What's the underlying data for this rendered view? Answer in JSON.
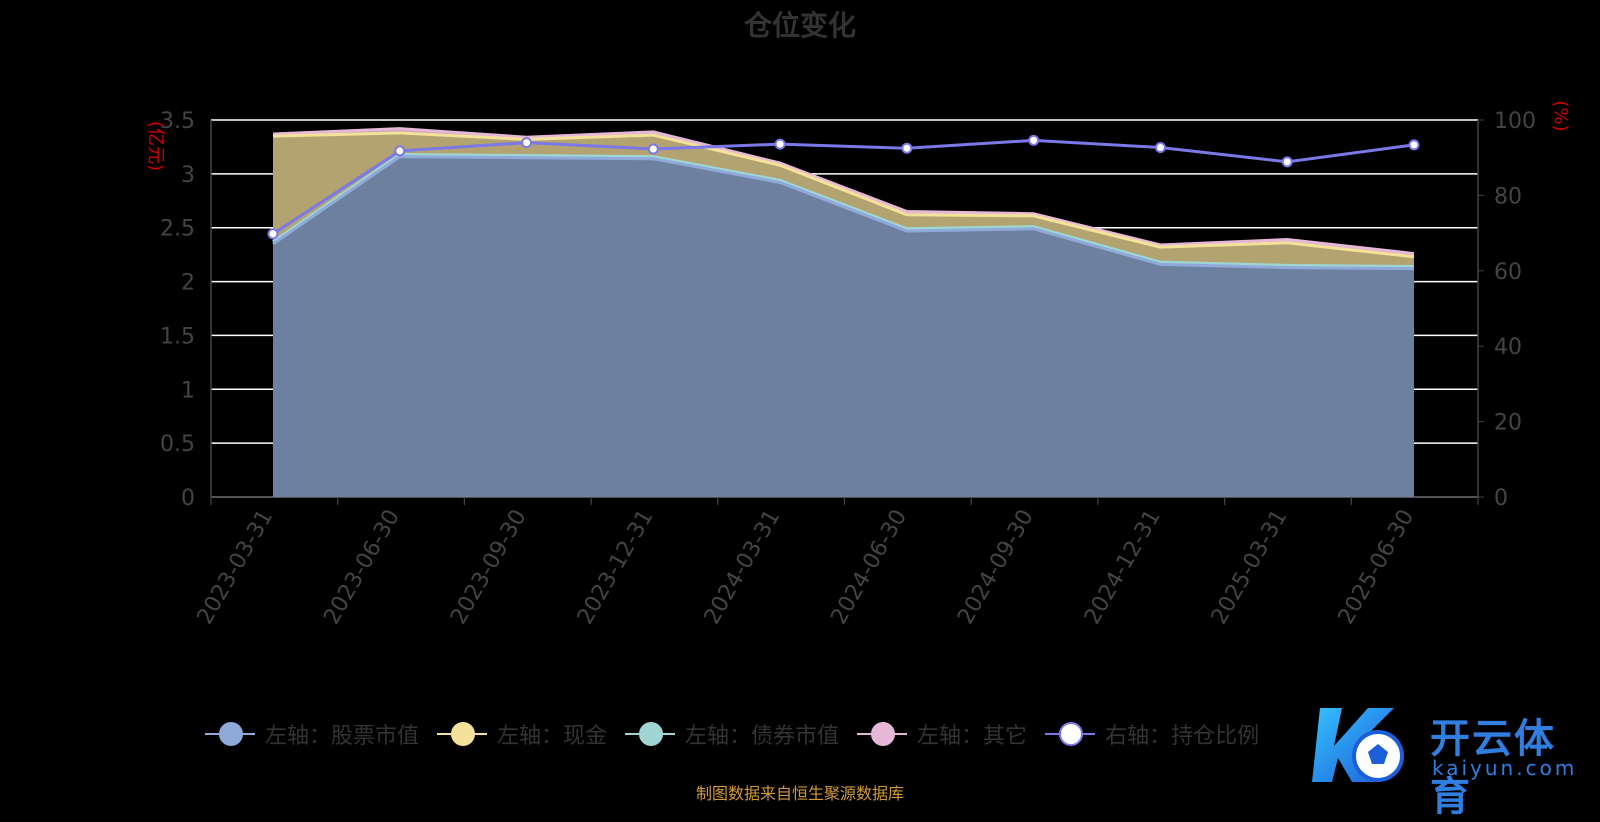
{
  "chart_data": {
    "type": "area",
    "title": "仓位变化",
    "categories": [
      "2023-03-31",
      "2023-06-30",
      "2023-09-30",
      "2023-12-31",
      "2024-03-31",
      "2024-06-30",
      "2024-09-30",
      "2024-12-31",
      "2025-03-31",
      "2025-06-30"
    ],
    "left_axis": {
      "label": "(亿元)",
      "ylim": [
        0,
        3.5
      ],
      "ticks": [
        "0",
        "0.5",
        "1",
        "1.5",
        "2",
        "2.5",
        "3",
        "3.5"
      ]
    },
    "right_axis": {
      "label": "(%)",
      "ylim": [
        0,
        100
      ],
      "ticks": [
        "0",
        "20",
        "40",
        "60",
        "80",
        "100"
      ]
    },
    "series": [
      {
        "name": "左轴：股票市值",
        "axis": "left",
        "stack": true,
        "color": "#8fa9d8",
        "values": [
          2.35,
          3.16,
          3.15,
          3.14,
          2.92,
          2.47,
          2.49,
          2.16,
          2.13,
          2.12
        ]
      },
      {
        "name": "左轴：债券市值",
        "axis": "left",
        "stack": true,
        "color": "#9fd6d3",
        "values": [
          0.02,
          0.02,
          0.02,
          0.02,
          0.02,
          0.02,
          0.02,
          0.02,
          0.02,
          0.02
        ]
      },
      {
        "name": "左轴：现金",
        "axis": "left",
        "stack": true,
        "color": "#f5e29a",
        "values": [
          0.98,
          0.2,
          0.15,
          0.2,
          0.14,
          0.13,
          0.1,
          0.14,
          0.21,
          0.09
        ]
      },
      {
        "name": "左轴：其它",
        "axis": "left",
        "stack": true,
        "color": "#e6b8d8",
        "values": [
          0.02,
          0.04,
          0.02,
          0.03,
          0.02,
          0.03,
          0.02,
          0.02,
          0.03,
          0.03
        ]
      },
      {
        "name": "右轴：持仓比例",
        "axis": "right",
        "stack": false,
        "color": "#7b78e8",
        "values": [
          69.8,
          91.8,
          94.0,
          92.3,
          93.6,
          92.5,
          94.6,
          92.7,
          88.9,
          93.4
        ]
      }
    ],
    "legend_order": [
      "左轴：股票市值",
      "左轴：现金",
      "左轴：债券市值",
      "左轴：其它",
      "右轴：持仓比例"
    ],
    "grid": true,
    "legend_position": "bottom"
  },
  "source_note": "制图数据来自恒生聚源数据库",
  "watermark": {
    "name": "开云体育",
    "url": "kaiyun.com"
  }
}
